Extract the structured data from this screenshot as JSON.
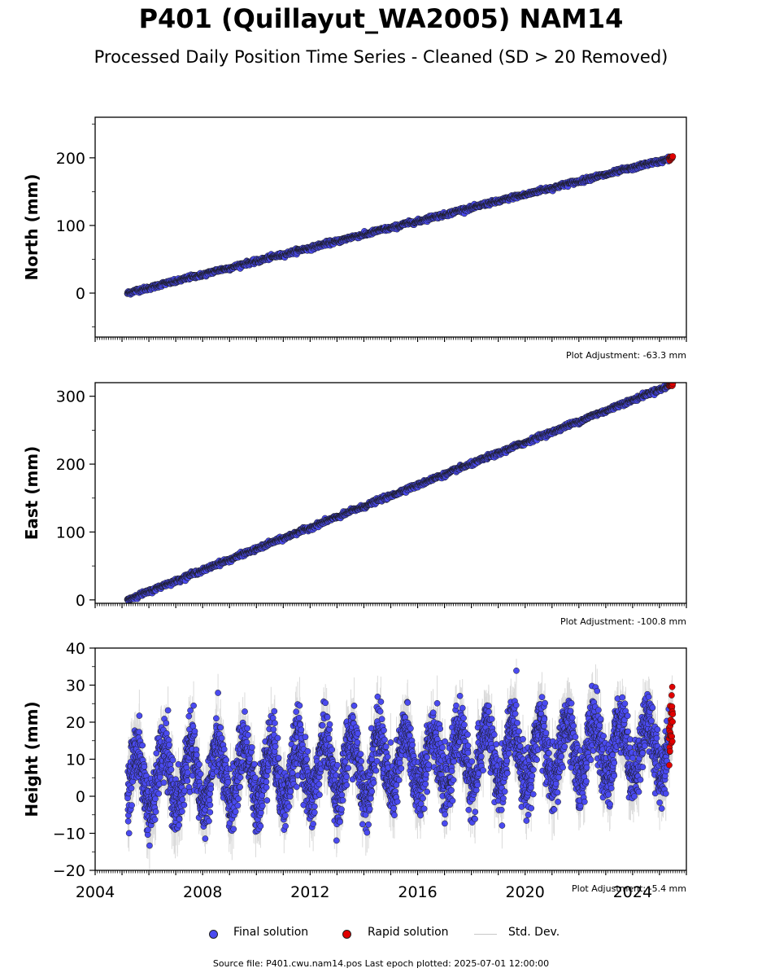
{
  "title": "P401 (Quillayut_WA2005) NAM14",
  "subtitle": "Processed Daily Position Time Series - Cleaned (SD > 20 Removed)",
  "legend": {
    "final": "Final solution",
    "rapid": "Rapid solution",
    "stddev": "Std. Dev."
  },
  "source_text": "Source file: P401.cwu.nam14.pos  Last epoch plotted: 2025-07-01 12:00:00",
  "colors": {
    "final_fill": "#4a4af0",
    "rapid_fill": "#e00000",
    "marker_edge": "#1a1a1a",
    "stddev": "#bdbdbd"
  },
  "chart_data": [
    {
      "type": "scatter",
      "ylabel": "North (mm)",
      "adjustment": "Plot Adjustment: -63.3 mm",
      "xlim": [
        2004,
        2026
      ],
      "ylim": [
        -65,
        260
      ],
      "yticks": [
        0,
        100,
        200
      ],
      "ytick_labels": [
        "0",
        "100",
        "200"
      ],
      "x_start": 2005.2,
      "x_end": 2025.5,
      "y_start": 0,
      "y_end": 200,
      "noise_sd": 1.5,
      "seasonal_amp": 0.5,
      "rapid_from": 2025.35
    },
    {
      "type": "scatter",
      "ylabel": "East (mm)",
      "adjustment": "Plot Adjustment: -100.8 mm",
      "xlim": [
        2004,
        2026
      ],
      "ylim": [
        -5,
        320
      ],
      "yticks": [
        0,
        100,
        200,
        300
      ],
      "ytick_labels": [
        "0",
        "100",
        "200",
        "300"
      ],
      "x_start": 2005.2,
      "x_end": 2025.5,
      "y_start": 0,
      "y_end": 318,
      "noise_sd": 1.5,
      "seasonal_amp": 0.5,
      "rapid_from": 2025.35
    },
    {
      "type": "scatter",
      "ylabel": "Height (mm)",
      "adjustment": "Plot Adjustment: -5.4 mm",
      "xlim": [
        2004,
        2026
      ],
      "ylim": [
        -20,
        40
      ],
      "yticks": [
        -20,
        -10,
        0,
        10,
        20,
        30,
        40
      ],
      "ytick_labels": [
        "−20",
        "−10",
        "0",
        "10",
        "20",
        "30",
        "40"
      ],
      "xticks": [
        2004,
        2008,
        2012,
        2016,
        2020,
        2024
      ],
      "xtick_labels": [
        "2004",
        "2008",
        "2012",
        "2016",
        "2020",
        "2024"
      ],
      "x_start": 2005.2,
      "x_end": 2025.5,
      "y_start": 4,
      "y_end": 14,
      "noise_sd": 4,
      "seasonal_amp": 8,
      "rapid_from": 2025.35
    }
  ]
}
